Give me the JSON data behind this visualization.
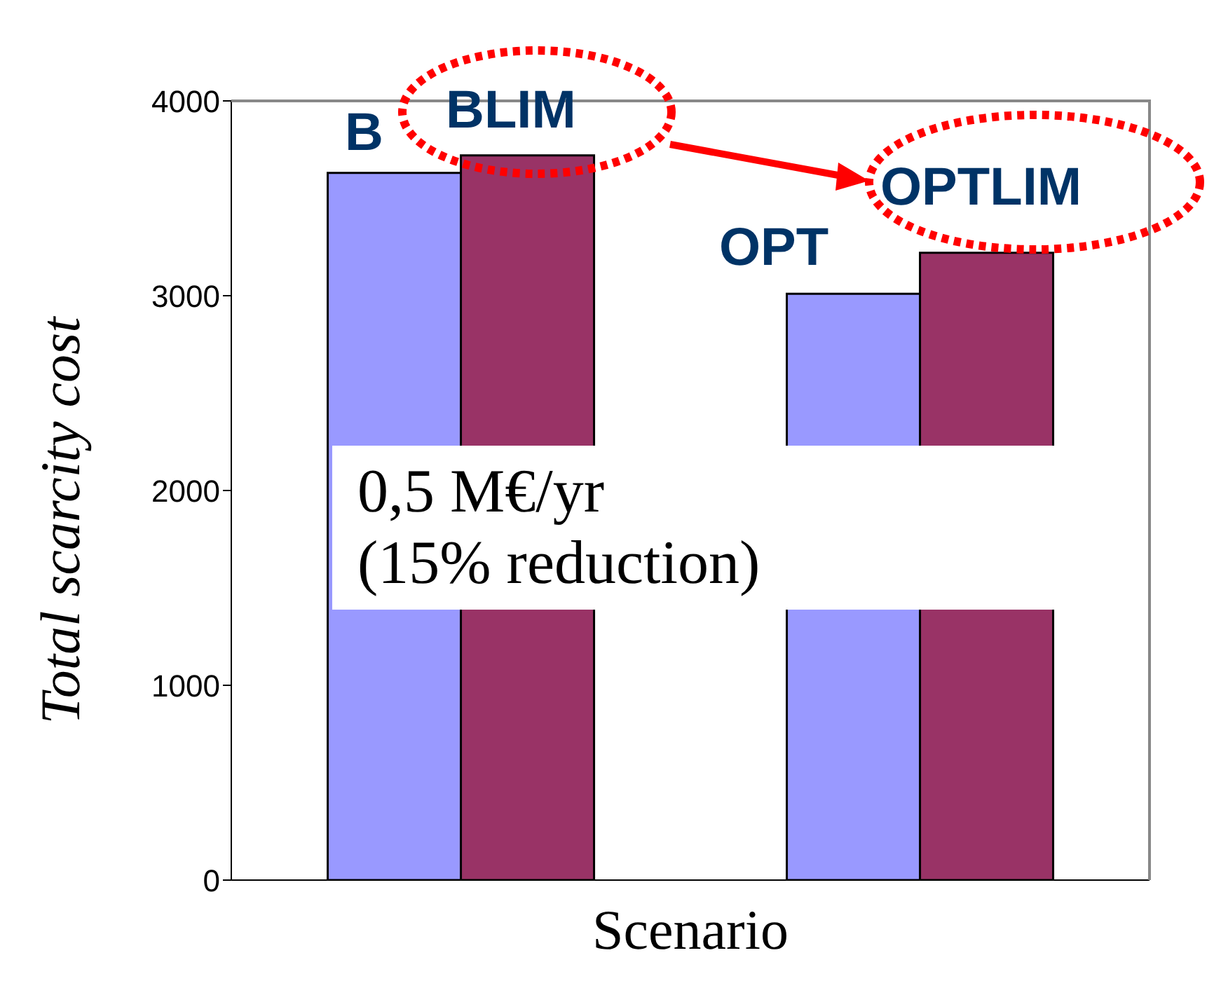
{
  "chart_data": {
    "type": "bar",
    "xlabel": "Scenario",
    "ylabel": "Total scarcity cost",
    "categories": [
      null,
      null
    ],
    "series": [
      {
        "color": "#9999ff",
        "values": [
          3630,
          3010
        ]
      },
      {
        "color": "#993366",
        "values": [
          3720,
          3220
        ]
      }
    ],
    "ylim": [
      0,
      4000
    ],
    "yticks": [
      0,
      1000,
      2000,
      3000,
      4000
    ],
    "annotations": [
      "B",
      "BLIM",
      "OPT",
      "OPTLIM",
      "0,5 M€/yr\n(15% reduction)"
    ]
  }
}
